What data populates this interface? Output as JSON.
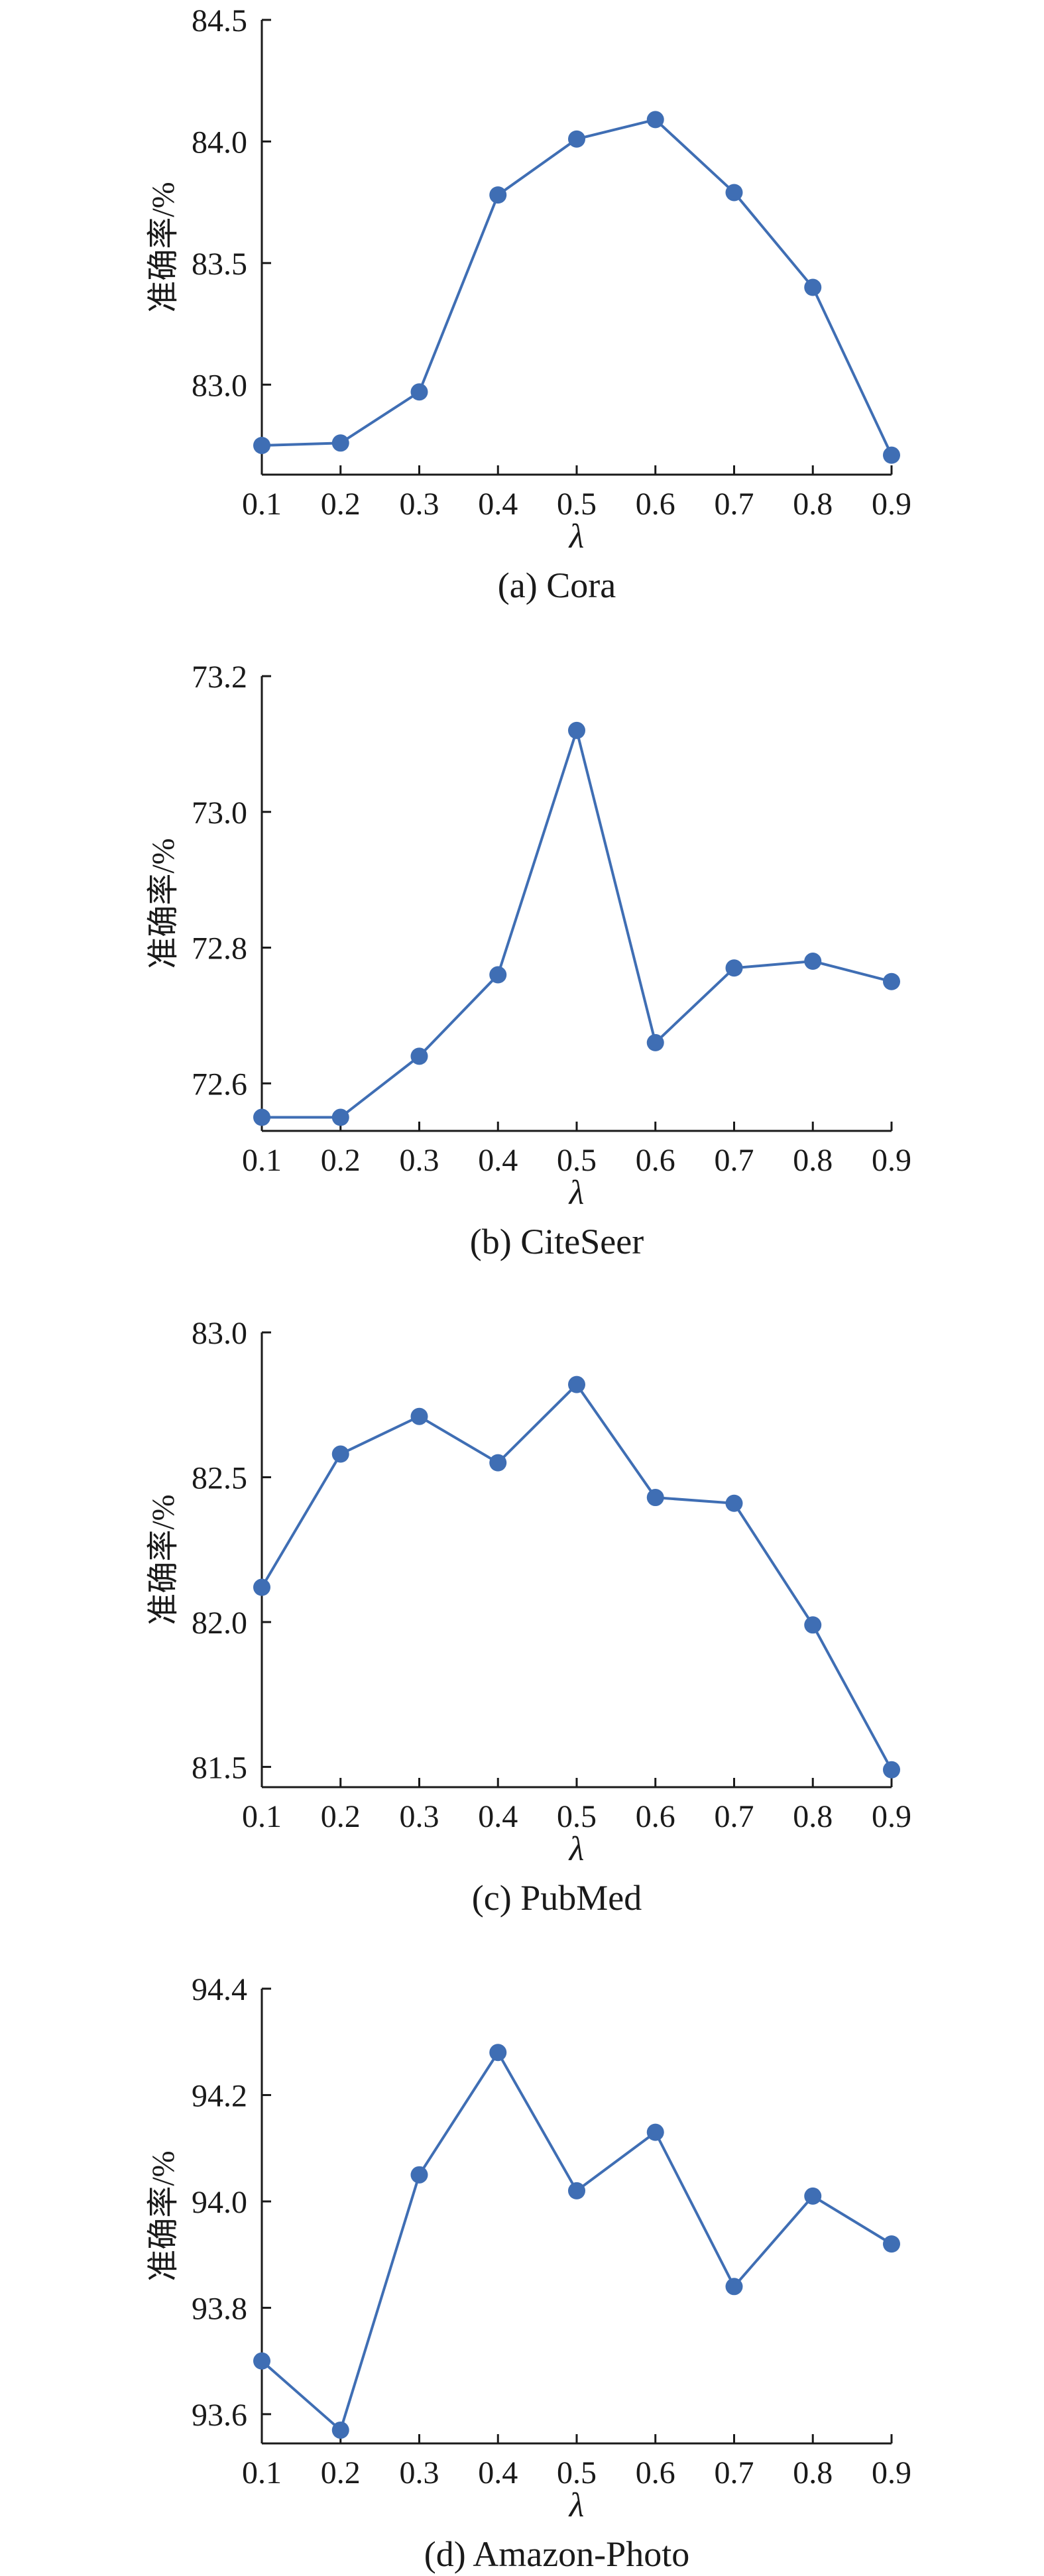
{
  "chart_data": [
    {
      "type": "line",
      "caption": "(a) Cora",
      "xlabel": "λ",
      "ylabel": "准确率/%",
      "x": [
        0.1,
        0.2,
        0.3,
        0.4,
        0.5,
        0.6,
        0.7,
        0.8,
        0.9
      ],
      "x_ticks": [
        "0.1",
        "0.2",
        "0.3",
        "0.4",
        "0.5",
        "0.6",
        "0.7",
        "0.8",
        "0.9"
      ],
      "y_ticks": [
        "83.0",
        "83.5",
        "84.0",
        "84.5"
      ],
      "y_tick_values": [
        83.0,
        83.5,
        84.0,
        84.5
      ],
      "ylim": [
        82.63,
        84.5
      ],
      "series": [
        {
          "values": [
            82.75,
            82.76,
            82.97,
            83.78,
            84.01,
            84.09,
            83.79,
            83.4,
            82.71
          ]
        }
      ],
      "grid": false,
      "color": "#3f6eb4"
    },
    {
      "type": "line",
      "caption": "(b) CiteSeer",
      "xlabel": "λ",
      "ylabel": "准确率/%",
      "x": [
        0.1,
        0.2,
        0.3,
        0.4,
        0.5,
        0.6,
        0.7,
        0.8,
        0.9
      ],
      "x_ticks": [
        "0.1",
        "0.2",
        "0.3",
        "0.4",
        "0.5",
        "0.6",
        "0.7",
        "0.8",
        "0.9"
      ],
      "y_ticks": [
        "72.6",
        "72.8",
        "73.0",
        "73.2"
      ],
      "y_tick_values": [
        72.6,
        72.8,
        73.0,
        73.2
      ],
      "ylim": [
        72.53,
        73.2
      ],
      "series": [
        {
          "values": [
            72.55,
            72.55,
            72.64,
            72.76,
            73.12,
            72.66,
            72.77,
            72.78,
            72.75
          ]
        }
      ],
      "grid": false,
      "color": "#3f6eb4"
    },
    {
      "type": "line",
      "caption": "(c) PubMed",
      "xlabel": "λ",
      "ylabel": "准确率/%",
      "x": [
        0.1,
        0.2,
        0.3,
        0.4,
        0.5,
        0.6,
        0.7,
        0.8,
        0.9
      ],
      "x_ticks": [
        "0.1",
        "0.2",
        "0.3",
        "0.4",
        "0.5",
        "0.6",
        "0.7",
        "0.8",
        "0.9"
      ],
      "y_ticks": [
        "81.5",
        "82.0",
        "82.5",
        "83.0"
      ],
      "y_tick_values": [
        81.5,
        82.0,
        82.5,
        83.0
      ],
      "ylim": [
        81.43,
        83.0
      ],
      "series": [
        {
          "values": [
            82.12,
            82.58,
            82.71,
            82.55,
            82.82,
            82.43,
            82.41,
            81.99,
            81.49
          ]
        }
      ],
      "grid": false,
      "color": "#3f6eb4"
    },
    {
      "type": "line",
      "caption": "(d) Amazon-Photo",
      "xlabel": "λ",
      "ylabel": "准确率/%",
      "x": [
        0.1,
        0.2,
        0.3,
        0.4,
        0.5,
        0.6,
        0.7,
        0.8,
        0.9
      ],
      "x_ticks": [
        "0.1",
        "0.2",
        "0.3",
        "0.4",
        "0.5",
        "0.6",
        "0.7",
        "0.8",
        "0.9"
      ],
      "y_ticks": [
        "93.6",
        "93.8",
        "94.0",
        "94.2",
        "94.4"
      ],
      "y_tick_values": [
        93.6,
        93.8,
        94.0,
        94.2,
        94.4
      ],
      "ylim": [
        93.545,
        94.4
      ],
      "series": [
        {
          "values": [
            93.7,
            93.57,
            94.05,
            94.28,
            94.02,
            94.13,
            93.84,
            94.01,
            93.92
          ]
        }
      ],
      "grid": false,
      "color": "#3f6eb4"
    }
  ]
}
